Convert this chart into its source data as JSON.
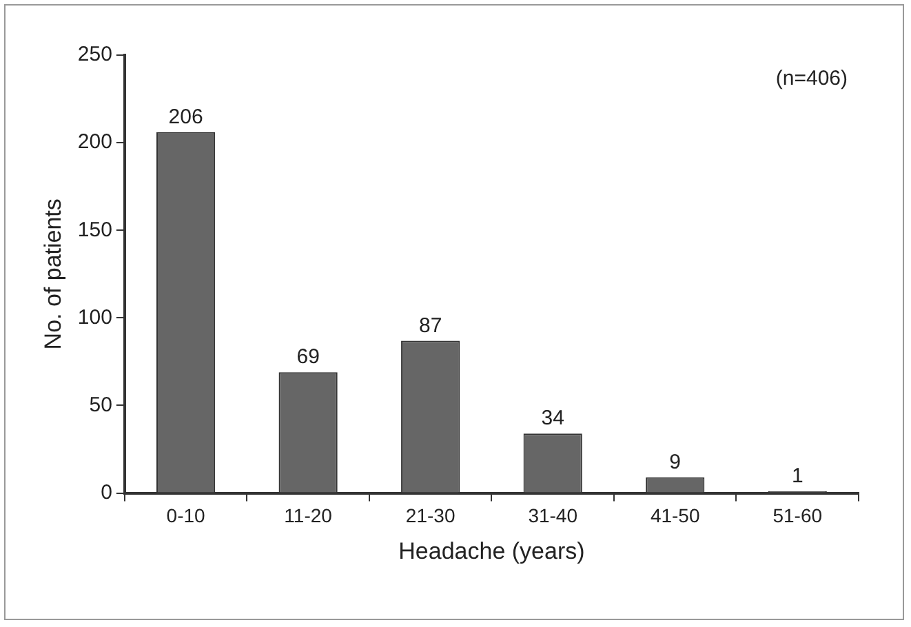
{
  "chart_data": {
    "type": "bar",
    "categories": [
      "0-10",
      "11-20",
      "21-30",
      "31-40",
      "41-50",
      "51-60"
    ],
    "values": [
      206,
      69,
      87,
      34,
      9,
      1
    ],
    "color": "#666666",
    "xlabel": "Headache (years)",
    "ylabel": "No. of patients",
    "ylim": [
      0,
      250
    ],
    "yticks": [
      0,
      50,
      100,
      150,
      200,
      250
    ],
    "data_labels": true,
    "grid": false,
    "legend": false,
    "annotations": [
      "(n=406)"
    ]
  }
}
